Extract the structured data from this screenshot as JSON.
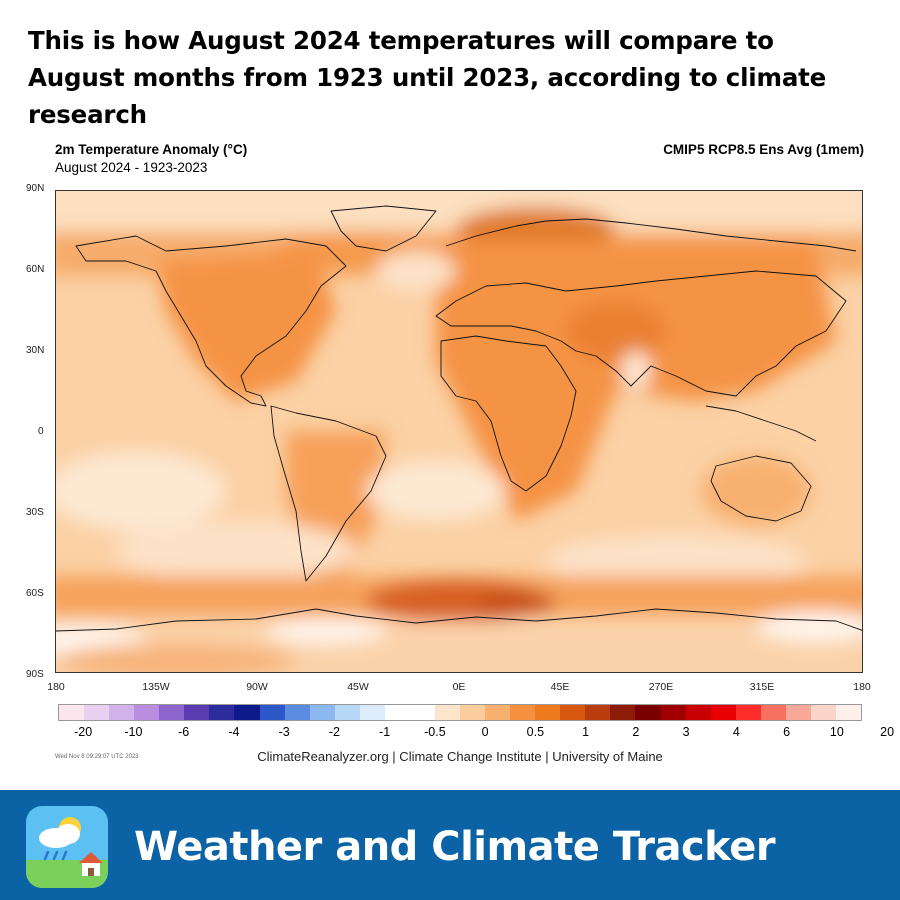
{
  "headline": {
    "line1": "This is how August 2024 temperatures will compare to",
    "line2": "August months from 1923 until 2023, according to climate",
    "line3": "research"
  },
  "map": {
    "title": "2m Temperature Anomaly (°C)",
    "subtitle": "August 2024 - 1923-2023",
    "model": "CMIP5 RCP8.5 Ens Avg (1mem)",
    "lat_labels": [
      "90N",
      "60N",
      "30N",
      "0",
      "30S",
      "60S",
      "90S"
    ],
    "lon_labels": [
      "180",
      "135W",
      "90W",
      "45W",
      "0E",
      "45E",
      "270E",
      "315E",
      "180"
    ]
  },
  "legend": {
    "labels": [
      "-20",
      "-10",
      "-6",
      "-4",
      "-3",
      "-2",
      "-1",
      "-0.5",
      "0",
      "0.5",
      "1",
      "2",
      "3",
      "4",
      "6",
      "10",
      "20"
    ],
    "colors": [
      "#fbe6ee",
      "#e8d0f0",
      "#d2b2ea",
      "#b98ee0",
      "#8c64cc",
      "#5a3cb0",
      "#2c2c9c",
      "#0f1a8a",
      "#2c58c8",
      "#5a8ce0",
      "#8cb8f0",
      "#b8d8f8",
      "#dcecfc",
      "#ffffff",
      "#ffffff",
      "#fde5cc",
      "#fbcc9c",
      "#f8b070",
      "#f59040",
      "#ee7a1e",
      "#d85810",
      "#b83c0c",
      "#8c1c08",
      "#7a0000",
      "#a00000",
      "#c80000",
      "#e80000",
      "#ff2c2c",
      "#f87060",
      "#f8a898",
      "#fcd4c8",
      "#fdf0ea"
    ]
  },
  "footer": {
    "timestamp": "Wed Nov 8 09:29:07 UTC 2023",
    "credit": "ClimateReanalyzer.org | Climate Change Institute | University of Maine"
  },
  "banner": {
    "app_name": "Weather and Climate Tracker",
    "icon": "weather-app-icon"
  }
}
